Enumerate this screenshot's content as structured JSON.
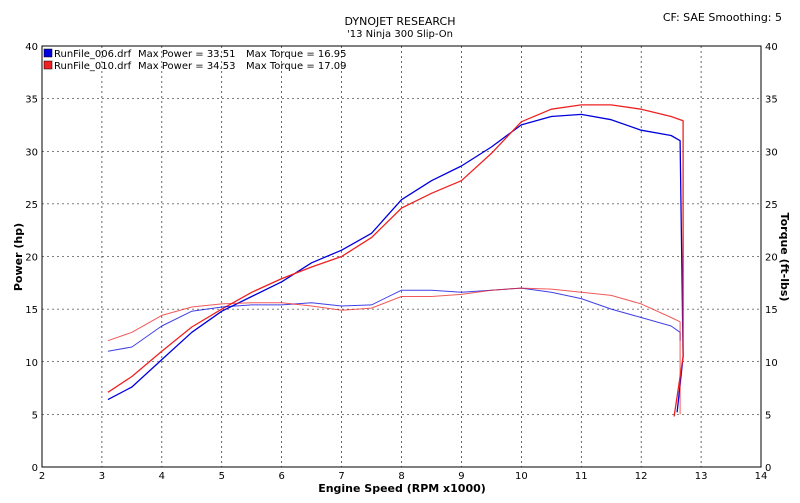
{
  "header": {
    "title": "DYNOJET RESEARCH",
    "subtitle": "'13 Ninja 300 Slip-On",
    "info": "CF: SAE  Smoothing: 5"
  },
  "colors": {
    "run1": "#0000dd",
    "run2": "#ee2222",
    "grid": "#000000"
  },
  "chart_data": {
    "type": "line",
    "xlabel": "Engine Speed (RPM x1000)",
    "ylabel_left": "Power (hp)",
    "ylabel_right": "Torque (ft-lbs)",
    "xlim": [
      2,
      14
    ],
    "ylim": [
      0,
      40
    ],
    "x_ticks": [
      2,
      3,
      4,
      5,
      6,
      7,
      8,
      9,
      10,
      11,
      12,
      13,
      14
    ],
    "y_ticks": [
      0,
      5,
      10,
      15,
      20,
      25,
      30,
      35,
      40
    ],
    "grid": true,
    "legend_position": "top-left",
    "legend": [
      {
        "file": "RunFile_006.drf",
        "power_label": "Max Power = 33.51",
        "torque_label": "Max Torque = 16.95",
        "color": "#0000dd"
      },
      {
        "file": "RunFile_010.drf",
        "power_label": "Max Power = 34.53",
        "torque_label": "Max Torque = 17.09",
        "color": "#ee2222"
      }
    ],
    "series": [
      {
        "name": "RunFile_006.drf",
        "measure": "Power",
        "color": "#0000dd",
        "points": [
          [
            3.1,
            6.4
          ],
          [
            3.5,
            7.6
          ],
          [
            4.0,
            10.2
          ],
          [
            4.5,
            12.8
          ],
          [
            5.0,
            14.8
          ],
          [
            5.5,
            16.2
          ],
          [
            6.0,
            17.6
          ],
          [
            6.5,
            19.4
          ],
          [
            7.0,
            20.6
          ],
          [
            7.5,
            22.2
          ],
          [
            8.0,
            25.4
          ],
          [
            8.5,
            27.2
          ],
          [
            9.0,
            28.6
          ],
          [
            9.5,
            30.4
          ],
          [
            10.0,
            32.5
          ],
          [
            10.5,
            33.3
          ],
          [
            11.0,
            33.5
          ],
          [
            11.5,
            33.0
          ],
          [
            12.0,
            32.0
          ],
          [
            12.5,
            31.5
          ],
          [
            12.65,
            31.0
          ],
          [
            12.7,
            10.5
          ],
          [
            12.6,
            5.2
          ]
        ]
      },
      {
        "name": "RunFile_010.drf",
        "measure": "Power",
        "color": "#ee2222",
        "points": [
          [
            3.1,
            7.1
          ],
          [
            3.5,
            8.6
          ],
          [
            4.0,
            11.0
          ],
          [
            4.5,
            13.3
          ],
          [
            5.0,
            15.0
          ],
          [
            5.5,
            16.6
          ],
          [
            6.0,
            17.9
          ],
          [
            6.5,
            19.0
          ],
          [
            7.0,
            20.0
          ],
          [
            7.5,
            21.8
          ],
          [
            8.0,
            24.6
          ],
          [
            8.5,
            26.0
          ],
          [
            9.0,
            27.2
          ],
          [
            9.5,
            29.8
          ],
          [
            10.0,
            32.8
          ],
          [
            10.5,
            34.0
          ],
          [
            11.0,
            34.4
          ],
          [
            11.5,
            34.4
          ],
          [
            12.0,
            34.0
          ],
          [
            12.5,
            33.3
          ],
          [
            12.7,
            32.9
          ],
          [
            12.7,
            10.5
          ],
          [
            12.55,
            4.8
          ]
        ]
      },
      {
        "name": "RunFile_006.drf",
        "measure": "Torque",
        "color": "#0000dd",
        "points": [
          [
            3.1,
            11.0
          ],
          [
            3.5,
            11.4
          ],
          [
            4.0,
            13.4
          ],
          [
            4.5,
            14.8
          ],
          [
            5.0,
            15.2
          ],
          [
            5.5,
            15.4
          ],
          [
            6.0,
            15.4
          ],
          [
            6.5,
            15.6
          ],
          [
            7.0,
            15.3
          ],
          [
            7.5,
            15.4
          ],
          [
            8.0,
            16.8
          ],
          [
            8.5,
            16.8
          ],
          [
            9.0,
            16.6
          ],
          [
            9.5,
            16.8
          ],
          [
            10.0,
            17.0
          ],
          [
            10.5,
            16.6
          ],
          [
            11.0,
            16.0
          ],
          [
            11.5,
            15.0
          ],
          [
            12.0,
            14.2
          ],
          [
            12.5,
            13.4
          ],
          [
            12.65,
            12.8
          ],
          [
            12.65,
            12.0
          ]
        ]
      },
      {
        "name": "RunFile_010.drf",
        "measure": "Torque",
        "color": "#ee2222",
        "points": [
          [
            3.1,
            12.0
          ],
          [
            3.5,
            12.8
          ],
          [
            4.0,
            14.4
          ],
          [
            4.5,
            15.2
          ],
          [
            5.0,
            15.5
          ],
          [
            5.5,
            15.6
          ],
          [
            6.0,
            15.6
          ],
          [
            6.5,
            15.3
          ],
          [
            7.0,
            14.9
          ],
          [
            7.5,
            15.1
          ],
          [
            8.0,
            16.2
          ],
          [
            8.5,
            16.2
          ],
          [
            9.0,
            16.4
          ],
          [
            9.5,
            16.8
          ],
          [
            10.0,
            17.0
          ],
          [
            10.5,
            16.9
          ],
          [
            11.0,
            16.6
          ],
          [
            11.5,
            16.3
          ],
          [
            12.0,
            15.5
          ],
          [
            12.5,
            14.2
          ],
          [
            12.65,
            13.8
          ],
          [
            12.65,
            5.0
          ]
        ]
      }
    ]
  }
}
